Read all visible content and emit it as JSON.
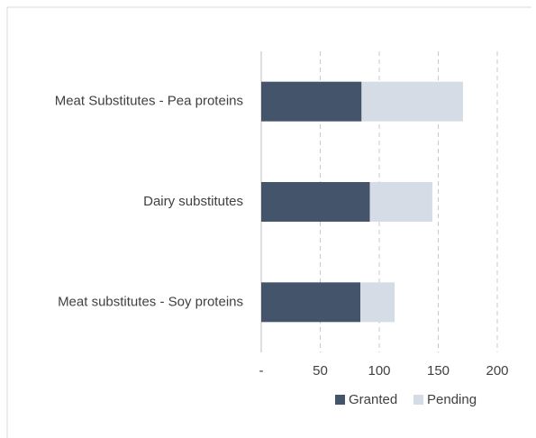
{
  "chart_data": {
    "type": "stacked_bar_horizontal",
    "categories": [
      "Meat Substitutes - Pea proteins",
      "Dairy substitutes",
      "Meat substitutes - Soy proteins"
    ],
    "series": [
      {
        "name": "Granted",
        "color": "#44546a",
        "values": [
          85,
          92,
          84
        ]
      },
      {
        "name": "Pending",
        "color": "#d6dce5",
        "values": [
          86,
          53,
          29
        ]
      }
    ],
    "xlim": [
      0,
      200
    ],
    "xticks": [
      {
        "value": 0,
        "label": "-"
      },
      50,
      100,
      150,
      200
    ],
    "grid": true,
    "legend": "bottom"
  }
}
